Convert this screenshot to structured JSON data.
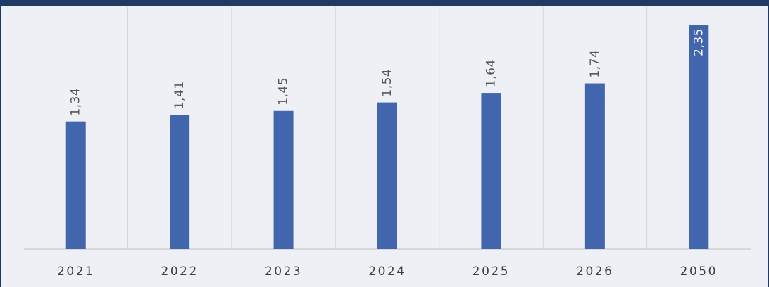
{
  "chart_data": {
    "type": "bar",
    "categories": [
      "2021",
      "2022",
      "2023",
      "2024",
      "2025",
      "2026",
      "2050"
    ],
    "values": [
      1.34,
      1.41,
      1.45,
      1.54,
      1.64,
      1.74,
      2.35
    ],
    "value_labels": [
      "1,34",
      "1,41",
      "1,45",
      "1,54",
      "1,64",
      "1,74",
      "2,35"
    ],
    "color": "#4166ae"
  }
}
